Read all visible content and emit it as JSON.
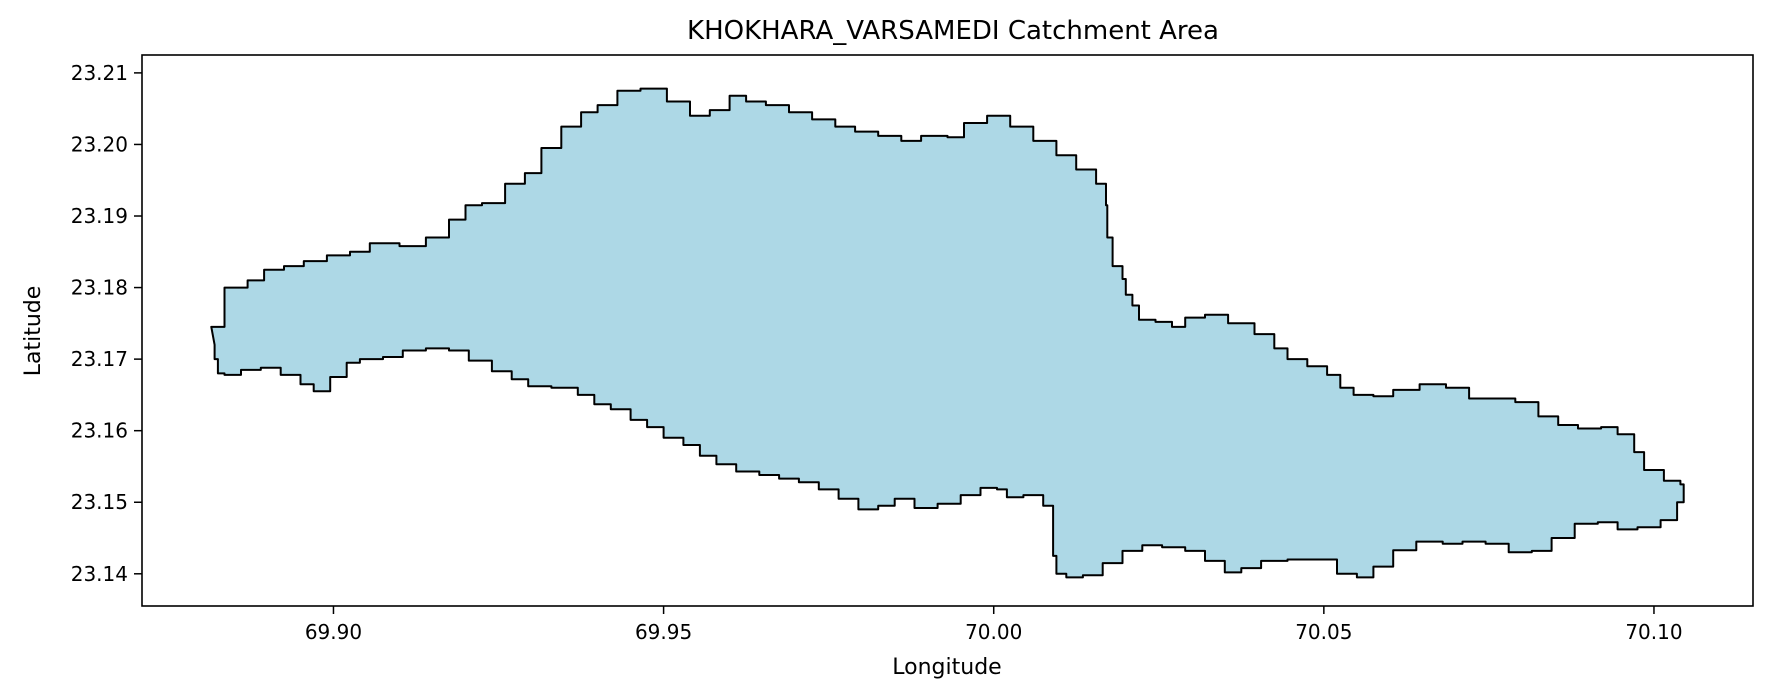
{
  "chart_data": {
    "type": "area",
    "title": "KHOKHARA_VARSAMEDI Catchment Area",
    "xlabel": "Longitude",
    "ylabel": "Latitude",
    "xlim": [
      69.871,
      70.115
    ],
    "ylim": [
      23.1355,
      23.2125
    ],
    "xticks": [
      69.9,
      69.95,
      70.0,
      70.05,
      70.1
    ],
    "xtick_labels": [
      "69.90",
      "69.95",
      "70.00",
      "70.05",
      "70.10"
    ],
    "yticks": [
      23.14,
      23.15,
      23.16,
      23.17,
      23.18,
      23.19,
      23.2,
      23.21
    ],
    "ytick_labels": [
      "23.14",
      "23.15",
      "23.16",
      "23.17",
      "23.18",
      "23.19",
      "23.20",
      "23.21"
    ],
    "grid": false,
    "fill_color": "#add8e6",
    "edge_color": "#000000",
    "series": [
      {
        "values": [
          [
            69.8815,
            23.1745
          ],
          [
            69.8835,
            23.18
          ],
          [
            69.887,
            23.181
          ],
          [
            69.8895,
            23.1825
          ],
          [
            69.8925,
            23.183
          ],
          [
            69.8955,
            23.1837
          ],
          [
            69.899,
            23.1845
          ],
          [
            69.9025,
            23.185
          ],
          [
            69.9055,
            23.1862
          ],
          [
            69.91,
            23.1858
          ],
          [
            69.914,
            23.187
          ],
          [
            69.9175,
            23.1895
          ],
          [
            69.92,
            23.1915
          ],
          [
            69.9225,
            23.1918
          ],
          [
            69.926,
            23.1945
          ],
          [
            69.929,
            23.196
          ],
          [
            69.9315,
            23.1995
          ],
          [
            69.9345,
            23.2025
          ],
          [
            69.9375,
            23.2045
          ],
          [
            69.94,
            23.2055
          ],
          [
            69.943,
            23.2075
          ],
          [
            69.9465,
            23.2078
          ],
          [
            69.9505,
            23.206
          ],
          [
            69.954,
            23.204
          ],
          [
            69.957,
            23.2048
          ],
          [
            69.96,
            23.2068
          ],
          [
            69.9625,
            23.206
          ],
          [
            69.9655,
            23.2055
          ],
          [
            69.969,
            23.2045
          ],
          [
            69.9725,
            23.2035
          ],
          [
            69.976,
            23.2025
          ],
          [
            69.979,
            23.2018
          ],
          [
            69.9825,
            23.2012
          ],
          [
            69.986,
            23.2005
          ],
          [
            69.989,
            23.2012
          ],
          [
            69.993,
            23.201
          ],
          [
            69.9955,
            23.203
          ],
          [
            69.999,
            23.204
          ],
          [
            70.0025,
            23.2025
          ],
          [
            70.006,
            23.2005
          ],
          [
            70.0095,
            23.1985
          ],
          [
            70.0125,
            23.1965
          ],
          [
            70.0155,
            23.1945
          ],
          [
            70.017,
            23.1915
          ],
          [
            70.0172,
            23.187
          ],
          [
            70.018,
            23.183
          ],
          [
            70.0195,
            23.1812
          ],
          [
            70.02,
            23.179
          ],
          [
            70.021,
            23.1775
          ],
          [
            70.022,
            23.1755
          ],
          [
            70.0245,
            23.1752
          ],
          [
            70.027,
            23.1745
          ],
          [
            70.029,
            23.1758
          ],
          [
            70.032,
            23.1762
          ],
          [
            70.0355,
            23.175
          ],
          [
            70.0395,
            23.1735
          ],
          [
            70.0425,
            23.1715
          ],
          [
            70.0445,
            23.17
          ],
          [
            70.0475,
            23.169
          ],
          [
            70.0505,
            23.1678
          ],
          [
            70.0525,
            23.166
          ],
          [
            70.0545,
            23.165
          ],
          [
            70.0575,
            23.1648
          ],
          [
            70.0605,
            23.1657
          ],
          [
            70.0645,
            23.1665
          ],
          [
            70.0685,
            23.166
          ],
          [
            70.072,
            23.1645
          ],
          [
            70.076,
            23.1645
          ],
          [
            70.079,
            23.164
          ],
          [
            70.0825,
            23.162
          ],
          [
            70.0855,
            23.1608
          ],
          [
            70.0885,
            23.1603
          ],
          [
            70.092,
            23.1605
          ],
          [
            70.0945,
            23.1595
          ],
          [
            70.097,
            23.157
          ],
          [
            70.0985,
            23.1545
          ],
          [
            70.1015,
            23.153
          ],
          [
            70.104,
            23.1525
          ],
          [
            70.1045,
            23.15
          ],
          [
            70.1035,
            23.1475
          ],
          [
            70.101,
            23.1465
          ],
          [
            70.0975,
            23.1462
          ],
          [
            70.0945,
            23.1472
          ],
          [
            70.0915,
            23.147
          ],
          [
            70.088,
            23.145
          ],
          [
            70.0845,
            23.1432
          ],
          [
            70.0815,
            23.143
          ],
          [
            70.078,
            23.1442
          ],
          [
            70.0745,
            23.1445
          ],
          [
            70.071,
            23.1442
          ],
          [
            70.068,
            23.1445
          ],
          [
            70.064,
            23.1433
          ],
          [
            70.0605,
            23.141
          ],
          [
            70.0575,
            23.1395
          ],
          [
            70.055,
            23.14
          ],
          [
            70.052,
            23.142
          ],
          [
            70.048,
            23.142
          ],
          [
            70.0445,
            23.1418
          ],
          [
            70.0405,
            23.1408
          ],
          [
            70.0375,
            23.1402
          ],
          [
            70.035,
            23.1418
          ],
          [
            70.032,
            23.1432
          ],
          [
            70.029,
            23.1437
          ],
          [
            70.0255,
            23.144
          ],
          [
            70.0225,
            23.1432
          ],
          [
            70.0195,
            23.1415
          ],
          [
            70.0165,
            23.1398
          ],
          [
            70.0135,
            23.1395
          ],
          [
            70.011,
            23.14
          ],
          [
            70.0095,
            23.1425
          ],
          [
            70.009,
            23.1462
          ],
          [
            70.009,
            23.1495
          ],
          [
            70.0075,
            23.151
          ],
          [
            70.0045,
            23.1507
          ],
          [
            70.002,
            23.1518
          ],
          [
            70.0005,
            23.152
          ],
          [
            69.998,
            23.151
          ],
          [
            69.995,
            23.1498
          ],
          [
            69.9915,
            23.1492
          ],
          [
            69.988,
            23.1505
          ],
          [
            69.985,
            23.1495
          ],
          [
            69.9825,
            23.149
          ],
          [
            69.9795,
            23.1505
          ],
          [
            69.9765,
            23.1518
          ],
          [
            69.9735,
            23.1528
          ],
          [
            69.9705,
            23.1533
          ],
          [
            69.9675,
            23.1538
          ],
          [
            69.9645,
            23.1543
          ],
          [
            69.961,
            23.1553
          ],
          [
            69.958,
            23.1565
          ],
          [
            69.9555,
            23.158
          ],
          [
            69.953,
            23.159
          ],
          [
            69.95,
            23.1605
          ],
          [
            69.9475,
            23.1615
          ],
          [
            69.945,
            23.163
          ],
          [
            69.942,
            23.1637
          ],
          [
            69.9395,
            23.165
          ],
          [
            69.937,
            23.166
          ],
          [
            69.933,
            23.1662
          ],
          [
            69.9295,
            23.1672
          ],
          [
            69.927,
            23.1683
          ],
          [
            69.924,
            23.1698
          ],
          [
            69.9205,
            23.1712
          ],
          [
            69.9175,
            23.1715
          ],
          [
            69.914,
            23.1712
          ],
          [
            69.9105,
            23.1703
          ],
          [
            69.9075,
            23.17
          ],
          [
            69.904,
            23.1695
          ],
          [
            69.902,
            23.1675
          ],
          [
            69.8995,
            23.1655
          ],
          [
            69.897,
            23.1665
          ],
          [
            69.895,
            23.1678
          ],
          [
            69.892,
            23.1688
          ],
          [
            69.889,
            23.1685
          ],
          [
            69.886,
            23.1678
          ],
          [
            69.8835,
            23.168
          ],
          [
            69.8825,
            23.17
          ],
          [
            69.882,
            23.172
          ]
        ]
      }
    ]
  }
}
